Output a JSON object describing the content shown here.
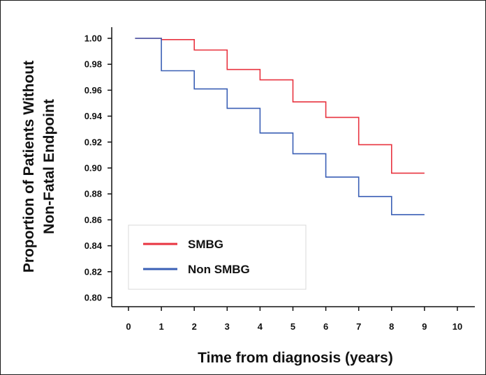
{
  "chart_data": {
    "type": "line",
    "step": true,
    "title": "",
    "xlabel": "Time from diagnosis (years)",
    "ylabel": [
      "Proportion of Patients Without",
      "Non-Fatal Endpoint"
    ],
    "xlim": [
      0,
      10
    ],
    "ylim": [
      0.8,
      1.0
    ],
    "xticks": [
      0,
      1,
      2,
      3,
      4,
      5,
      6,
      7,
      8,
      9,
      10
    ],
    "yticks": [
      "1.00",
      "0.98",
      "0.96",
      "0.94",
      "0.92",
      "0.90",
      "0.88",
      "0.86",
      "0.84",
      "0.82",
      "0.80"
    ],
    "grid": false,
    "legend": {
      "position": "bottom-left"
    },
    "series": [
      {
        "name": "SMBG",
        "color": "#e8333f",
        "x": [
          0.2,
          1.0,
          2.0,
          3.0,
          4.0,
          5.0,
          6.0,
          7.0,
          8.0,
          9.0
        ],
        "y": [
          1.0,
          0.999,
          0.991,
          0.976,
          0.968,
          0.951,
          0.939,
          0.918,
          0.896,
          0.896
        ]
      },
      {
        "name": "Non SMBG",
        "color": "#3a5fb5",
        "x": [
          0.2,
          1.0,
          2.0,
          3.0,
          4.0,
          5.0,
          6.0,
          7.0,
          8.0,
          9.0
        ],
        "y": [
          1.0,
          0.975,
          0.961,
          0.946,
          0.927,
          0.911,
          0.893,
          0.878,
          0.864,
          0.864
        ]
      }
    ]
  }
}
